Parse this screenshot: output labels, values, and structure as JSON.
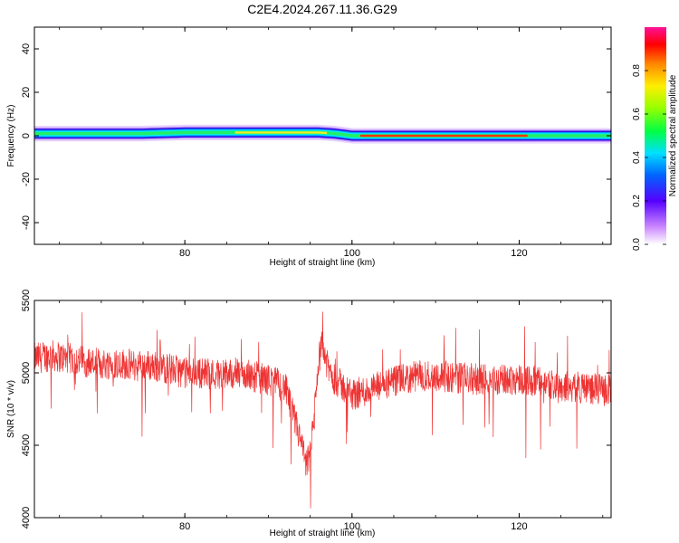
{
  "title": "C2E4.2024.267.11.36.G29",
  "chart_data": [
    {
      "type": "heatmap",
      "xlabel": "Height of straight line (km)",
      "ylabel": "Frequency (Hz)",
      "xlim": [
        62,
        131
      ],
      "ylim": [
        -50,
        50
      ],
      "xticks": [
        80,
        100,
        120
      ],
      "yticks": [
        40,
        20,
        0,
        -20,
        -40
      ],
      "ytick_labels": [
        "40",
        "20",
        "0",
        "-20",
        "-40"
      ],
      "band_center_hz": [
        [
          62,
          1
        ],
        [
          66,
          1
        ],
        [
          70,
          1
        ],
        [
          75,
          1
        ],
        [
          80,
          1.5
        ],
        [
          85,
          1.5
        ],
        [
          88,
          1.5
        ],
        [
          92,
          1.5
        ],
        [
          96,
          1.5
        ],
        [
          98,
          1
        ],
        [
          100,
          0
        ],
        [
          105,
          0
        ],
        [
          110,
          0
        ],
        [
          115,
          0
        ],
        [
          120,
          0
        ],
        [
          125,
          0
        ],
        [
          131,
          0
        ]
      ],
      "colorbar": {
        "label": "Normalized spectral amplitude",
        "range": [
          0,
          1
        ],
        "ticks": [
          0.0,
          0.2,
          0.4,
          0.6,
          0.8
        ],
        "tick_labels": [
          "0.0",
          "0.2",
          "0.4",
          "0.6",
          "0.8"
        ]
      }
    },
    {
      "type": "line",
      "xlabel": "Height of straight line (km)",
      "ylabel": "SNR (10 * v/v)",
      "xlim": [
        62,
        131
      ],
      "ylim": [
        4000,
        5500
      ],
      "xticks": [
        80,
        100,
        120
      ],
      "yticks": [
        5500,
        5000,
        4500,
        4000
      ],
      "ytick_labels": [
        "5500",
        "5000",
        "4500",
        "4000"
      ],
      "series": [
        {
          "color": "#ee3333",
          "x": [
            62,
            64,
            66,
            68,
            70,
            72,
            74,
            76,
            78,
            80,
            82,
            84,
            86,
            88,
            90,
            91,
            92,
            93,
            94,
            94.5,
            95,
            95.5,
            96,
            96.5,
            97,
            98,
            99,
            100,
            102,
            104,
            106,
            108,
            110,
            112,
            114,
            116,
            118,
            120,
            122,
            124,
            126,
            128,
            130,
            131
          ],
          "y": [
            5100,
            5120,
            5100,
            5080,
            5060,
            5070,
            5050,
            5050,
            5030,
            5000,
            5000,
            4990,
            5000,
            4980,
            4950,
            4930,
            4900,
            4700,
            4500,
            4350,
            4450,
            4700,
            5100,
            5200,
            5050,
            4950,
            4900,
            4850,
            4880,
            4920,
            4950,
            4980,
            4980,
            4970,
            4960,
            4950,
            4950,
            4960,
            4940,
            4920,
            4900,
            4900,
            4880,
            4880
          ]
        }
      ]
    }
  ]
}
